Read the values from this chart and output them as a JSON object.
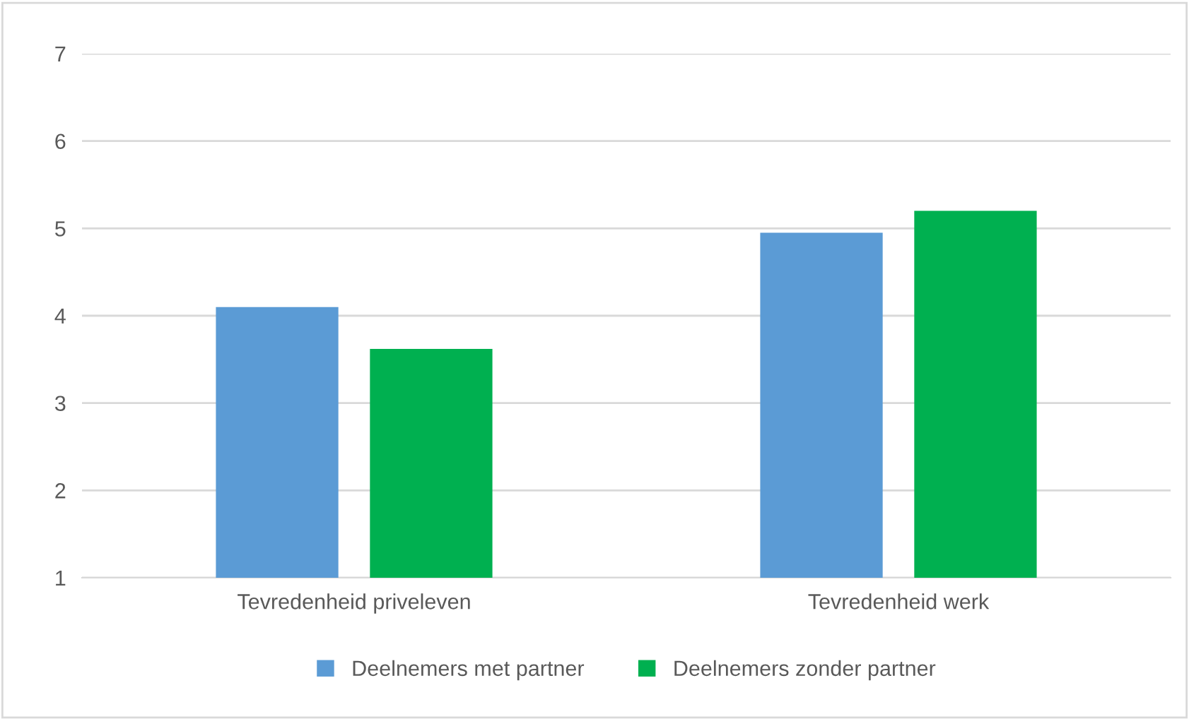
{
  "chart_data": {
    "type": "bar",
    "categories": [
      "Tevredenheid priveleven",
      "Tevredenheid werk"
    ],
    "series": [
      {
        "name": "Deelnemers met partner",
        "color": "#5b9bd5",
        "values": [
          4.1,
          4.95
        ]
      },
      {
        "name": "Deelnemers zonder partner",
        "color": "#00b050",
        "values": [
          3.62,
          5.2
        ]
      }
    ],
    "ylim": [
      1,
      7
    ],
    "yticks": [
      1,
      2,
      3,
      4,
      5,
      6,
      7
    ],
    "grid": "y",
    "legend": "bottom"
  }
}
